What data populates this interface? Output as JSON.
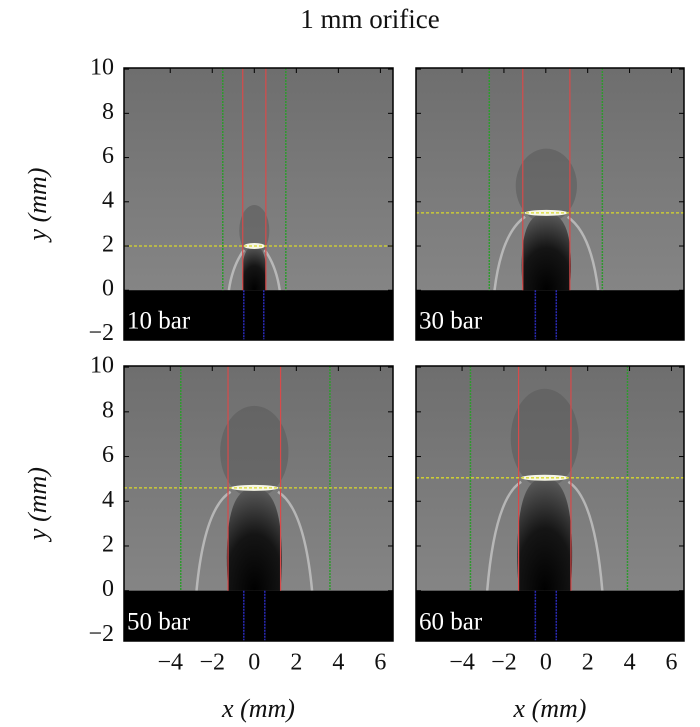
{
  "title": "1 mm orifice",
  "chart_data": [
    {
      "type": "image",
      "label": "10 bar",
      "ylabel": "y (mm)",
      "xlim": [
        -6.2,
        6.6
      ],
      "ylim": [
        -2.25,
        10.05
      ],
      "yticks": [
        {
          "value": -2,
          "label": "−2"
        },
        0,
        2,
        4,
        6,
        8,
        10
      ],
      "red_x": [
        -0.55,
        0.55
      ],
      "green_x": [
        -1.5,
        1.5
      ],
      "blue_x": [
        -0.5,
        0.45
      ],
      "front_y": 2.0
    },
    {
      "type": "image",
      "label": "30 bar",
      "xlim": [
        -6.2,
        6.6
      ],
      "ylim": [
        -2.25,
        10.05
      ],
      "red_x": [
        -1.1,
        1.15
      ],
      "green_x": [
        -2.7,
        2.7
      ],
      "blue_x": [
        -0.5,
        0.5
      ],
      "front_y": 3.5
    },
    {
      "type": "image",
      "label": "50 bar",
      "ylabel": "y (mm)",
      "xlabel": "x (mm)",
      "xlim": [
        -6.2,
        6.6
      ],
      "ylim": [
        -2.25,
        10.05
      ],
      "xticks": [
        {
          "value": -4,
          "label": "−4"
        },
        {
          "value": -2,
          "label": "−2"
        },
        0,
        2,
        4,
        6
      ],
      "yticks": [
        {
          "value": -2,
          "label": "−2"
        },
        0,
        2,
        4,
        6,
        8,
        10
      ],
      "red_x": [
        -1.25,
        1.25
      ],
      "green_x": [
        -3.5,
        3.6
      ],
      "blue_x": [
        -0.5,
        0.5
      ],
      "front_y": 4.6
    },
    {
      "type": "image",
      "label": "60 bar",
      "xlabel": "x (mm)",
      "xlim": [
        -6.2,
        6.6
      ],
      "ylim": [
        -2.25,
        10.05
      ],
      "xticks": [
        {
          "value": -4,
          "label": "−4"
        },
        {
          "value": -2,
          "label": "−2"
        },
        0,
        2,
        4,
        6
      ],
      "red_x": [
        -1.3,
        1.2
      ],
      "green_x": [
        -3.6,
        3.9
      ],
      "blue_x": [
        -0.5,
        0.5
      ],
      "front_y": 5.05
    }
  ]
}
